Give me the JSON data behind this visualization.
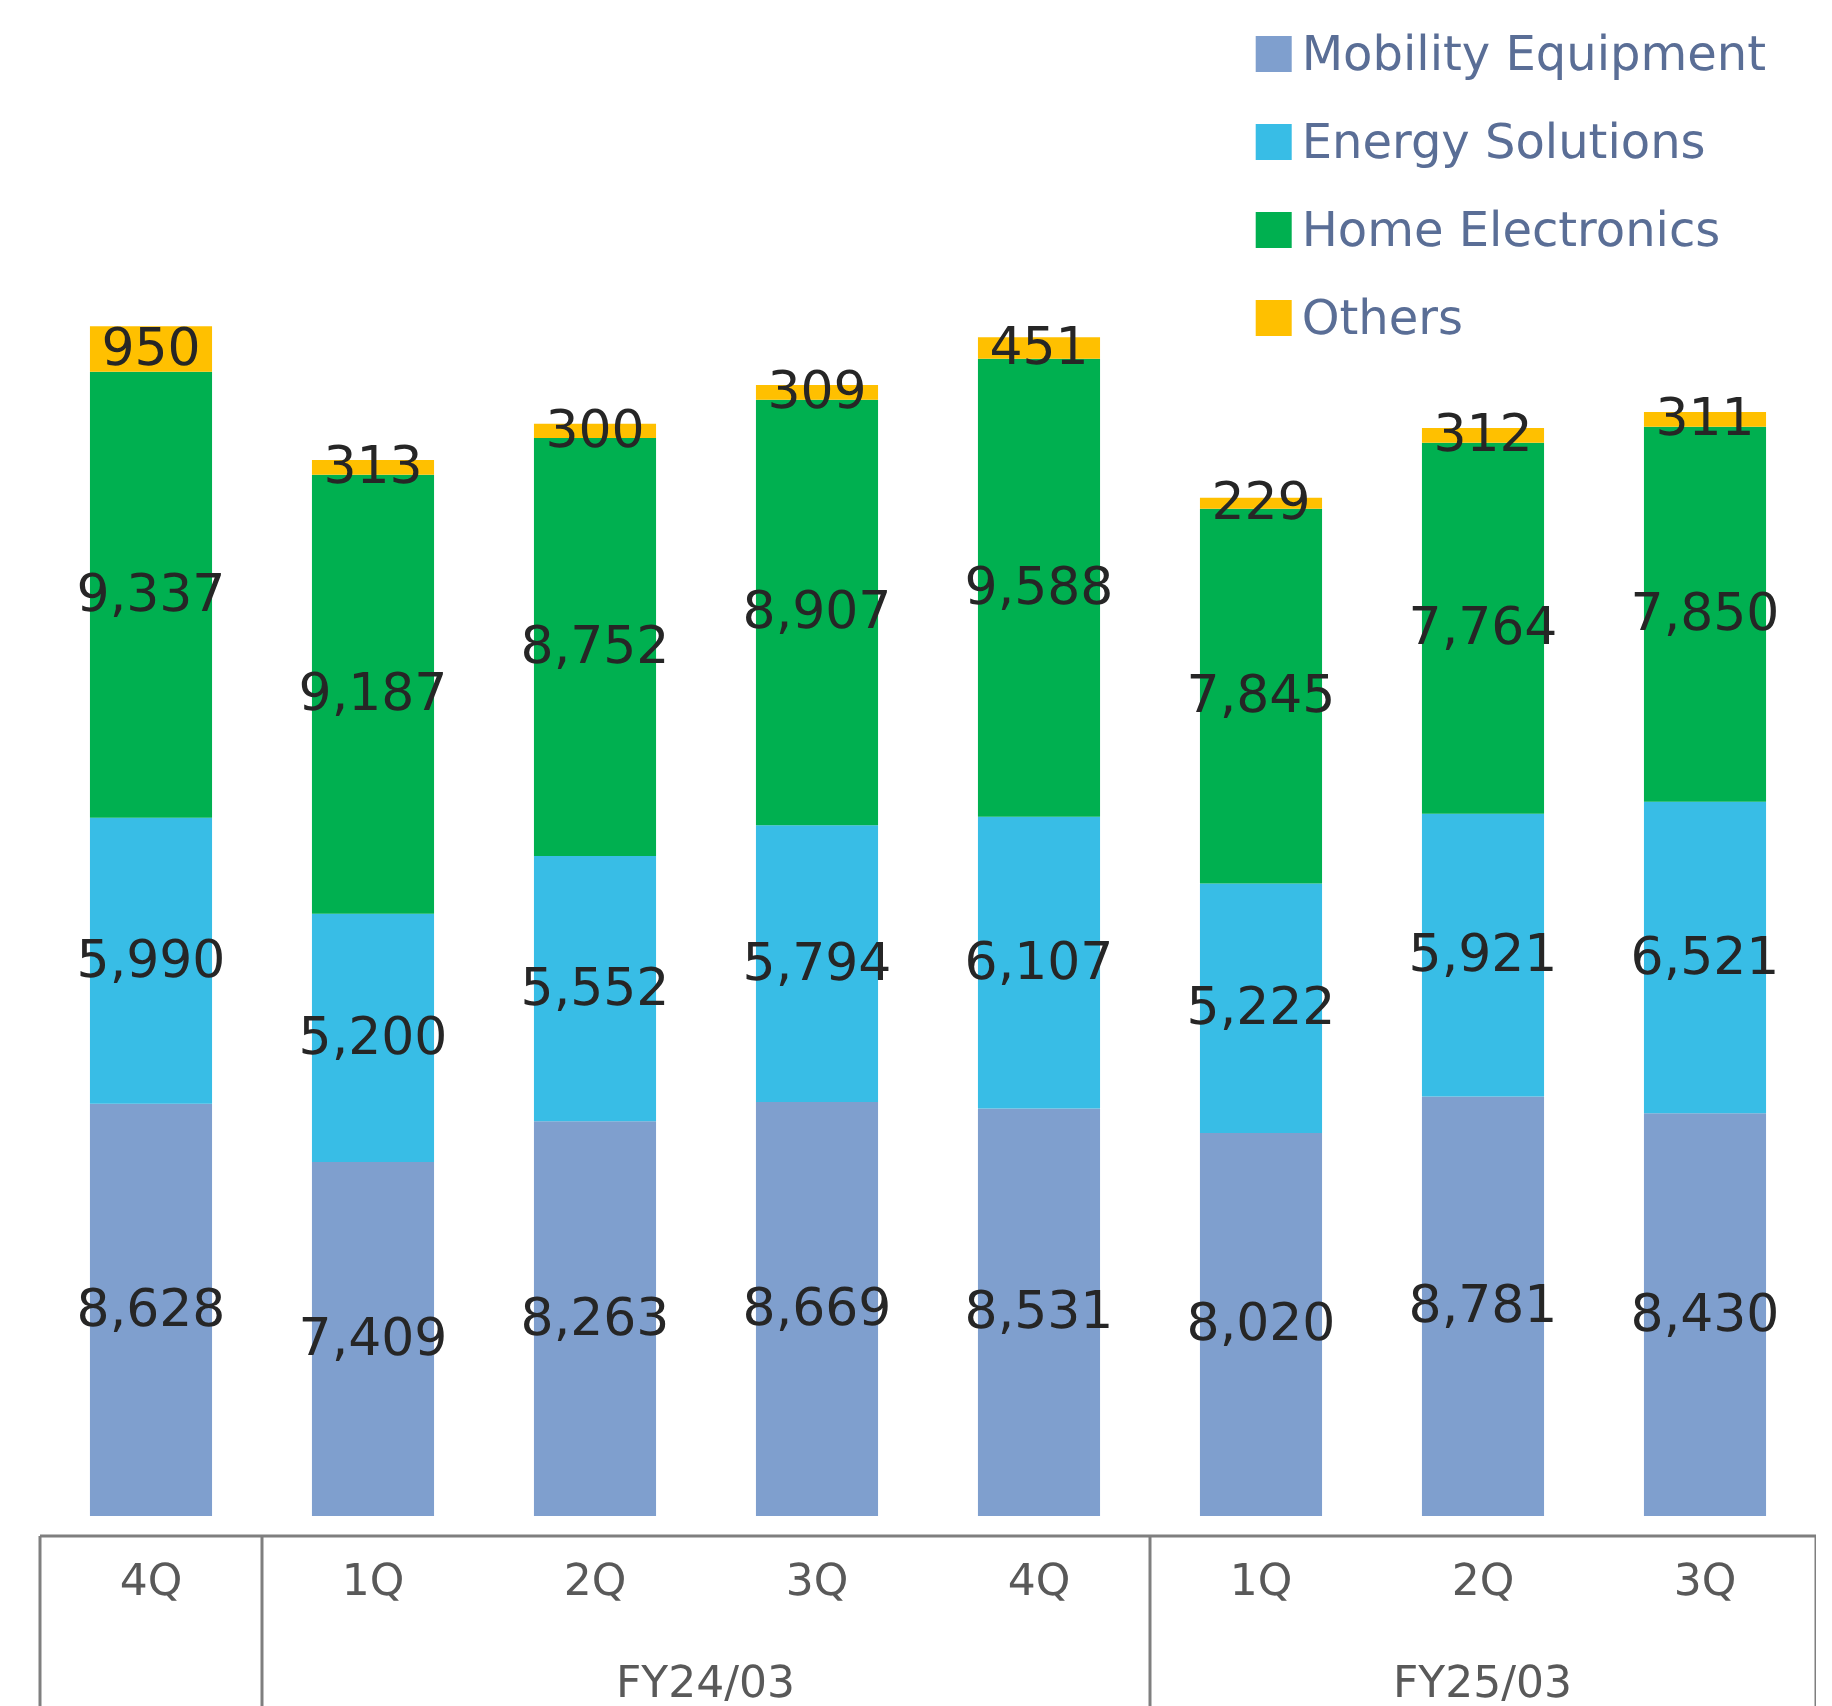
{
  "chart_data": {
    "type": "bar",
    "stacked": true,
    "legend": "top right",
    "categories": [
      "4Q",
      "1Q",
      "2Q",
      "3Q",
      "4Q",
      "1Q",
      "2Q",
      "3Q"
    ],
    "series": [
      {
        "name": "Mobility Equipment",
        "color": "#7f9fce",
        "values": [
          8628,
          7409,
          8263,
          8669,
          8531,
          8020,
          8781,
          8430
        ],
        "value_labels": [
          "8,628",
          "7,409",
          "8,263",
          "8,669",
          "8,531",
          "8,020",
          "8,781",
          "8,430"
        ]
      },
      {
        "name": "Energy Solutions",
        "color": "#38bde6",
        "values": [
          5990,
          5200,
          5552,
          5794,
          6107,
          5222,
          5921,
          6521
        ],
        "value_labels": [
          "5,990",
          "5,200",
          "5,552",
          "5,794",
          "6,107",
          "5,222",
          "5,921",
          "6,521"
        ]
      },
      {
        "name": "Home Electronics",
        "color": "#00b050",
        "values": [
          9337,
          9187,
          8752,
          8907,
          9588,
          7845,
          7764,
          7850
        ],
        "value_labels": [
          "9,337",
          "9,187",
          "8,752",
          "8,907",
          "9,588",
          "7,845",
          "7,764",
          "7,850"
        ]
      },
      {
        "name": "Others",
        "color": "#ffc000",
        "values": [
          950,
          313,
          300,
          309,
          451,
          229,
          312,
          311
        ],
        "value_labels": [
          "950",
          "313",
          "300",
          "309",
          "451",
          "229",
          "312",
          "311"
        ]
      }
    ],
    "annotations": [
      "FY24/03",
      "FY25/03"
    ]
  }
}
